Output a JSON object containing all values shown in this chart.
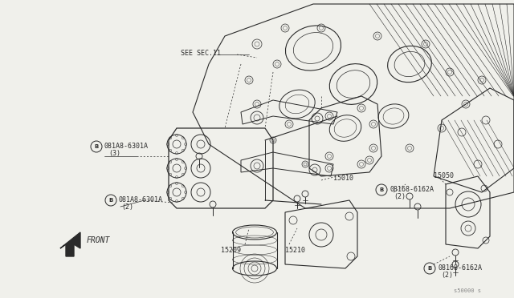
{
  "background_color": "#f0f0eb",
  "line_color": "#2a2a2a",
  "figure_width": 6.4,
  "figure_height": 3.72,
  "dpi": 100,
  "labels": {
    "see_sec": "SEE SEC.11",
    "front": "FRONT",
    "watermark": "s50000 s"
  }
}
